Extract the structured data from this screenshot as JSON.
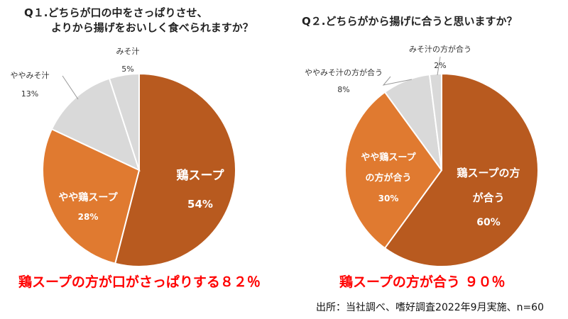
{
  "chart_data": [
    {
      "type": "pie",
      "title_lines": [
        "Q１.どちらが口の中をさっぱりさせ、",
        "よりから揚げをおいしく食べられますか？"
      ],
      "slices": [
        {
          "label": "鶏スープ",
          "value": 54,
          "value_label": "54%",
          "color": "#b85a1f"
        },
        {
          "label": "やや鶏スープ",
          "value": 28,
          "value_label": "28%",
          "color": "#e07a30"
        },
        {
          "label": "ややみそ汁",
          "value": 13,
          "value_label": "13%",
          "color": "#d9d9d9"
        },
        {
          "label": "みそ汁",
          "value": 5,
          "value_label": "5%",
          "color": "#d9d9d9"
        }
      ],
      "summary": "鶏スープの方が口がさっぱりする８２％"
    },
    {
      "type": "pie",
      "title_lines": [
        "Q２.どちらがから揚げに合うと思いますか？"
      ],
      "slices": [
        {
          "label_lines": [
            "鶏スープの方",
            "が合う"
          ],
          "value": 60,
          "value_label": "60%",
          "color": "#b85a1f"
        },
        {
          "label_lines": [
            "やや鶏スープ",
            "の方が合う"
          ],
          "value": 30,
          "value_label": "30%",
          "color": "#e07a30"
        },
        {
          "label_lines": [
            "ややみそ汁の方が合う"
          ],
          "value": 8,
          "value_label": "8%",
          "color": "#d9d9d9"
        },
        {
          "label_lines": [
            "みそ汁の方が合う"
          ],
          "value": 2,
          "value_label": "2%",
          "color": "#d9d9d9"
        }
      ],
      "summary": "鶏スープの方が合う ９０％"
    }
  ],
  "source": "出所：当社調べ、嗜好調査2022年9月実施、n=60"
}
